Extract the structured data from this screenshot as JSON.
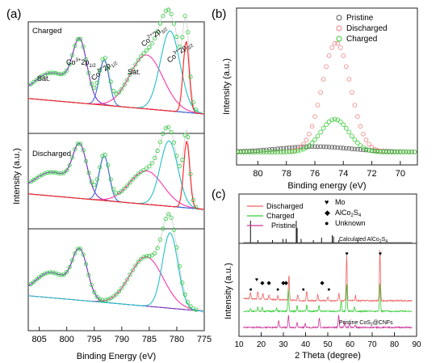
{
  "panels": {
    "a": {
      "label": "(a)",
      "xlabel": "Binding Energy (eV)",
      "ylabel": "Intensity (a.u.)",
      "x_ticks": [
        805,
        800,
        795,
        790,
        785,
        780,
        775
      ],
      "subpanels": [
        {
          "label": "Charged",
          "annotations": [
            {
              "text": "Sat.",
              "x": 802.5
            },
            {
              "text": "Co3+2p1/2",
              "x": 797.5
            },
            {
              "text": "Co2+2p1/2",
              "x": 793.2
            },
            {
              "text": "Sat.",
              "x": 786
            },
            {
              "text": "Co2+2p3/2",
              "x": 781.5
            },
            {
              "text": "Co3+2p3/2",
              "x": 778.5
            }
          ]
        },
        {
          "label": "Discharged",
          "annotations": []
        },
        {
          "label": "",
          "annotations": []
        }
      ]
    },
    "b": {
      "label": "(b)",
      "xlabel": "Binding energy (eV)",
      "ylabel": "Intensity (a.u.)",
      "x_ticks": [
        80,
        78,
        76,
        74,
        72,
        70
      ],
      "legend": [
        {
          "name": "Pristine",
          "color": "#555555"
        },
        {
          "name": "Discharged",
          "color": "#f08080"
        },
        {
          "name": "Charged",
          "color": "#33cc33"
        }
      ]
    },
    "c": {
      "label": "(c)",
      "xlabel": "2 Theta (degree)",
      "ylabel": "Intensity (a.u.)",
      "x_ticks": [
        10,
        20,
        30,
        40,
        50,
        60,
        70,
        80,
        90
      ],
      "legend_lines": [
        {
          "name": "Discharged",
          "color": "#f06060"
        },
        {
          "name": "Charged",
          "color": "#33cc33"
        },
        {
          "name": "Pristine",
          "color": "#cc3399"
        }
      ],
      "legend_markers": [
        {
          "symbol": "♥",
          "name": "Mo"
        },
        {
          "symbol": "◆",
          "name": "AlCo2S4"
        },
        {
          "symbol": "●",
          "name": "Unknown"
        }
      ],
      "calc_label": "Calculated AlCo2S4",
      "pristine_label": "Pristine CoS2@CNFs"
    }
  },
  "chart_data": [
    {
      "type": "line",
      "title": "",
      "xlabel": "Binding Energy (eV)",
      "ylabel": "Intensity (a.u.)",
      "xlim": [
        807,
        775
      ],
      "x_reversed": true,
      "subpanels": [
        {
          "name": "Charged",
          "envelope_peaks": [
            [
              802.5,
              0.32,
              3.5
            ],
            [
              797.6,
              0.62,
              1.3
            ],
            [
              793.2,
              0.52,
              0.9
            ],
            [
              785.5,
              0.62,
              3.0
            ],
            [
              781.2,
              0.92,
              1.8
            ],
            [
              778.3,
              0.82,
              0.55
            ]
          ],
          "components": [
            {
              "color": "#7b2fbf",
              "peaks": [
                [
                  802.5,
                  0.32,
                  3.5
                ],
                [
                  797.6,
                  0.62,
                  1.3
                ]
              ]
            },
            {
              "color": "#3a6fd8",
              "peaks": [
                [
                  793.2,
                  0.52,
                  0.9
                ]
              ]
            },
            {
              "color": "#ff33aa",
              "peaks": [
                [
                  785.5,
                  0.62,
                  3.0
                ]
              ]
            },
            {
              "color": "#22c0c8",
              "peaks": [
                [
                  781.2,
                  0.92,
                  1.8
                ]
              ]
            },
            {
              "color": "#ff2020",
              "peaks": [
                [
                  778.3,
                  0.82,
                  0.55
                ]
              ]
            }
          ]
        },
        {
          "name": "Discharged",
          "envelope_peaks": [
            [
              802.5,
              0.32,
              3.5
            ],
            [
              797.6,
              0.62,
              1.3
            ],
            [
              793.2,
              0.6,
              0.9
            ],
            [
              785.5,
              0.45,
              3.0
            ],
            [
              781.4,
              0.88,
              1.6
            ],
            [
              778.2,
              0.9,
              0.55
            ]
          ],
          "components": [
            {
              "color": "#7b2fbf",
              "peaks": [
                [
                  802.5,
                  0.32,
                  3.5
                ],
                [
                  797.6,
                  0.62,
                  1.3
                ]
              ]
            },
            {
              "color": "#3a6fd8",
              "peaks": [
                [
                  793.2,
                  0.6,
                  0.9
                ]
              ]
            },
            {
              "color": "#ff33aa",
              "peaks": [
                [
                  785.5,
                  0.45,
                  3.0
                ]
              ]
            },
            {
              "color": "#22c0c8",
              "peaks": [
                [
                  781.4,
                  0.88,
                  1.6
                ]
              ]
            },
            {
              "color": "#ff2020",
              "peaks": [
                [
                  778.2,
                  0.9,
                  0.55
                ]
              ]
            }
          ]
        },
        {
          "name": "",
          "envelope_peaks": [
            [
              802.8,
              0.32,
              3.0
            ],
            [
              797.6,
              0.58,
              1.4
            ],
            [
              785.5,
              0.62,
              3.0
            ],
            [
              781.2,
              0.95,
              1.4
            ]
          ],
          "components": [
            {
              "color": "#7b2fbf",
              "peaks": [
                [
                  802.8,
                  0.32,
                  3.0
                ],
                [
                  797.6,
                  0.58,
                  1.4
                ]
              ]
            },
            {
              "color": "#ff33aa",
              "peaks": [
                [
                  785.5,
                  0.62,
                  3.0
                ]
              ]
            },
            {
              "color": "#22c0c8",
              "peaks": [
                [
                  781.2,
                  0.95,
                  1.4
                ]
              ]
            }
          ]
        }
      ]
    },
    {
      "type": "scatter",
      "title": "",
      "xlabel": "Binding energy (eV)",
      "ylabel": "Intensity (a.u.)",
      "xlim": [
        81.5,
        68.8
      ],
      "x_reversed": true,
      "series": [
        {
          "name": "Pristine",
          "color": "#555555",
          "peak_center": 76,
          "amplitude": 0.05,
          "width": 2.5
        },
        {
          "name": "Discharged",
          "color": "#f08080",
          "peak_center": 74.5,
          "amplitude": 1.0,
          "width": 1.0
        },
        {
          "name": "Charged",
          "color": "#33cc33",
          "peak_center": 74.6,
          "amplitude": 0.3,
          "width": 1.0
        }
      ]
    },
    {
      "type": "line",
      "title": "",
      "xlabel": "2 Theta (degree)",
      "ylabel": "Intensity (a.u.)",
      "xlim": [
        10,
        90
      ],
      "series": [
        {
          "name": "Calculated AlCo2S4",
          "color": "#111111",
          "sticks": [
            [
              15.2,
              0.9
            ],
            [
              18.5,
              0.1
            ],
            [
              25.1,
              0.1
            ],
            [
              29.8,
              0.15
            ],
            [
              31.2,
              0.15
            ],
            [
              35.8,
              0.9
            ],
            [
              36.2,
              0.6
            ],
            [
              38.0,
              0.15
            ],
            [
              43.5,
              0.1
            ],
            [
              47.2,
              0.2
            ],
            [
              52.0,
              0.3
            ],
            [
              52.6,
              0.25
            ],
            [
              55.0,
              0.1
            ],
            [
              63.5,
              0.1
            ]
          ]
        },
        {
          "name": "Discharged",
          "color": "#f06060",
          "peaks": [
            [
              15.2,
              0.12
            ],
            [
              18.5,
              0.15
            ],
            [
              20.8,
              0.12
            ],
            [
              23.5,
              0.1
            ],
            [
              27.5,
              0.08
            ],
            [
              32.5,
              0.5
            ],
            [
              36.5,
              0.12
            ],
            [
              40.5,
              0.2
            ],
            [
              45.5,
              0.12
            ],
            [
              50.0,
              0.08
            ],
            [
              55.0,
              0.15
            ],
            [
              58.5,
              0.9
            ],
            [
              62.5,
              0.1
            ],
            [
              73.5,
              1.0
            ]
          ]
        },
        {
          "name": "Charged",
          "color": "#33cc33",
          "peaks": [
            [
              15.2,
              0.05
            ],
            [
              18.5,
              0.08
            ],
            [
              20.5,
              0.08
            ],
            [
              27.0,
              0.06
            ],
            [
              32.2,
              0.45
            ],
            [
              36.2,
              0.12
            ],
            [
              40.5,
              0.12
            ],
            [
              46.0,
              0.12
            ],
            [
              56.0,
              0.2
            ],
            [
              58.5,
              0.55
            ],
            [
              62.0,
              0.08
            ],
            [
              73.5,
              0.55
            ]
          ]
        },
        {
          "name": "Pristine",
          "color": "#cc3399",
          "peaks": [
            [
              27.9,
              0.15
            ],
            [
              32.3,
              0.25
            ],
            [
              36.2,
              0.1
            ],
            [
              39.8,
              0.08
            ],
            [
              46.2,
              0.2
            ],
            [
              54.9,
              0.25
            ],
            [
              57.6,
              0.1
            ],
            [
              59.8,
              0.08
            ],
            [
              62.3,
              0.05
            ]
          ]
        }
      ],
      "markers": [
        {
          "symbol": "●",
          "x": 15.3
        },
        {
          "symbol": "♥",
          "x": 18.0
        },
        {
          "symbol": "◆",
          "x": 20.5
        },
        {
          "symbol": "◆",
          "x": 23.5
        },
        {
          "symbol": "●",
          "x": 27.5
        },
        {
          "symbol": "◆",
          "x": 30.0
        },
        {
          "symbol": "◆",
          "x": 31.2
        },
        {
          "symbol": "●",
          "x": 39.0
        },
        {
          "symbol": "◆",
          "x": 47.5
        },
        {
          "symbol": "●",
          "x": 50.5
        },
        {
          "symbol": "♥",
          "x": 58.6
        },
        {
          "symbol": "♥",
          "x": 73.6
        }
      ]
    }
  ]
}
